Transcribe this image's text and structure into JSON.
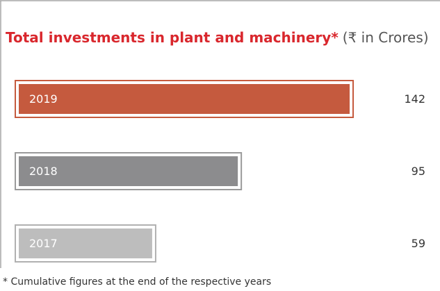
{
  "chart_data": {
    "type": "bar",
    "orientation": "horizontal",
    "title": "Total investments in plant and machinery*",
    "subtitle": "(₹ in Crores)",
    "categories": [
      "2019",
      "2018",
      "2017"
    ],
    "values": [
      142,
      95,
      59
    ],
    "colors": [
      "#c55a3e",
      "#8c8c8e",
      "#bdbdbd"
    ],
    "border_colors": [
      "#c55a3e",
      "#9a9a9a",
      "#b0b0b0"
    ],
    "footnote": "* Cumulative figures at the end of the respective years"
  }
}
